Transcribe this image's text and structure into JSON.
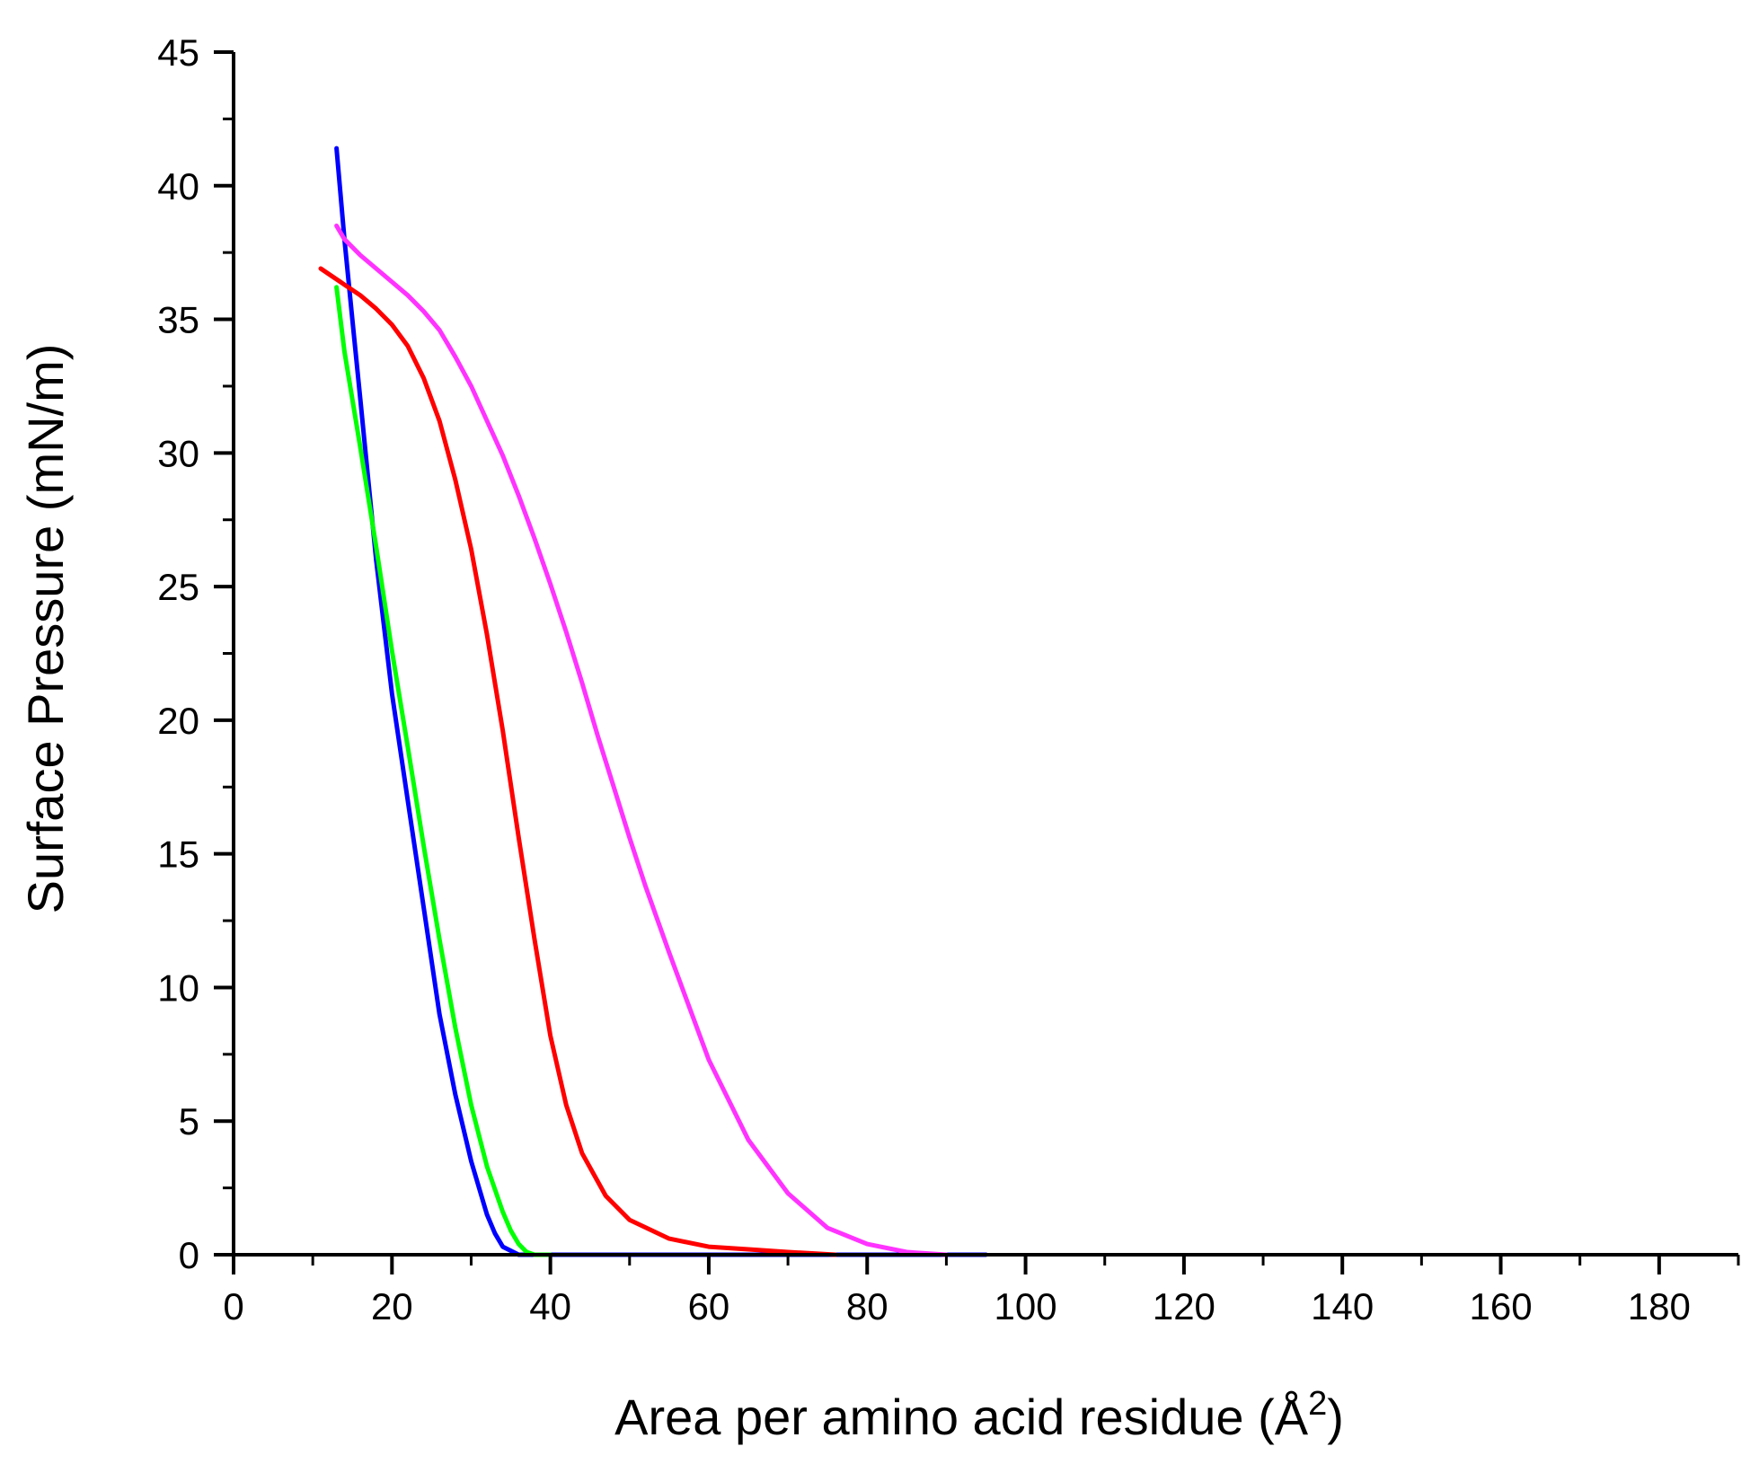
{
  "chart_data": {
    "type": "line",
    "title": "",
    "xlabel": "Area per amino acid residue (Å",
    "xlabel_superscript": "2",
    "xlabel_suffix": ")",
    "ylabel": "Surface Pressure (mN/m)",
    "xlim": [
      0,
      190
    ],
    "ylim": [
      0,
      45
    ],
    "x_ticks": [
      0,
      20,
      40,
      60,
      80,
      100,
      120,
      140,
      160,
      180
    ],
    "y_ticks": [
      0,
      5,
      10,
      15,
      20,
      25,
      30,
      35,
      40,
      45
    ],
    "grid": false,
    "legend": "none",
    "series": [
      {
        "color": "#0000ff",
        "x": [
          95,
          90,
          85,
          80,
          70,
          60,
          50,
          40,
          36,
          34,
          33,
          32,
          30,
          28,
          26,
          24,
          22,
          20,
          18,
          17,
          16,
          15,
          14,
          13
        ],
        "y": [
          0,
          0,
          0,
          0,
          0,
          0,
          0,
          0,
          0,
          0.3,
          0.8,
          1.5,
          3.5,
          6.0,
          9.0,
          13.0,
          17.0,
          21.0,
          26.0,
          29.0,
          32.0,
          35.0,
          38.0,
          41.4
        ]
      },
      {
        "color": "#00ff00",
        "x": [
          40,
          38,
          37,
          36,
          35,
          34,
          32,
          30,
          28,
          26,
          24,
          22,
          20,
          18,
          16,
          14,
          13
        ],
        "y": [
          0,
          0,
          0.1,
          0.4,
          0.9,
          1.6,
          3.3,
          5.6,
          8.5,
          11.8,
          15.3,
          19.0,
          22.6,
          26.5,
          30.2,
          33.8,
          36.2
        ]
      },
      {
        "color": "#ff0000",
        "x": [
          76,
          70,
          65,
          60,
          55,
          50,
          47,
          44,
          42,
          40,
          38,
          36,
          34,
          32,
          30,
          28,
          26,
          24,
          22,
          20,
          18,
          16,
          14,
          12,
          11
        ],
        "y": [
          0,
          0.1,
          0.2,
          0.3,
          0.6,
          1.3,
          2.2,
          3.8,
          5.6,
          8.2,
          11.8,
          15.6,
          19.6,
          23.2,
          26.4,
          29.0,
          31.2,
          32.8,
          34.0,
          34.8,
          35.4,
          35.9,
          36.3,
          36.7,
          36.9
        ]
      },
      {
        "color": "#ff33ff",
        "x": [
          90,
          85,
          80,
          75,
          70,
          65,
          60,
          55,
          52,
          50,
          48,
          46,
          44,
          42,
          40,
          38,
          36,
          34,
          32,
          30,
          28,
          26,
          24,
          22,
          20,
          18,
          16,
          14,
          13
        ],
        "y": [
          0,
          0.1,
          0.4,
          1.0,
          2.3,
          4.3,
          7.3,
          11.3,
          13.8,
          15.6,
          17.5,
          19.4,
          21.4,
          23.3,
          25.1,
          26.8,
          28.4,
          29.9,
          31.2,
          32.5,
          33.6,
          34.6,
          35.3,
          35.9,
          36.4,
          36.9,
          37.4,
          38.0,
          38.5
        ]
      }
    ]
  }
}
